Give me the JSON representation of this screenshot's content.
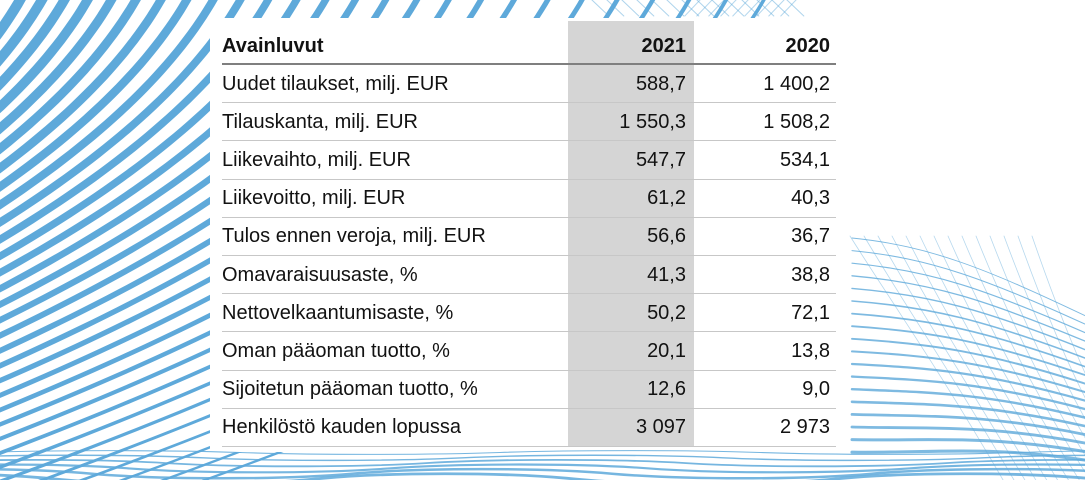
{
  "page": {
    "background": "#ffffff"
  },
  "colors": {
    "accent_blue": "#5ea9da",
    "highlight_column_bg": "#d5d5d5",
    "header_rule": "#7f7f7f",
    "row_rule": "#c7c7c7",
    "text": "#121212"
  },
  "table": {
    "header": {
      "label": "Avainluvut",
      "year_current": "2021",
      "year_prior": "2020"
    },
    "rows": [
      {
        "label": "Uudet tilaukset, milj. EUR",
        "v2021": "588,7",
        "v2020": "1 400,2"
      },
      {
        "label": "Tilauskanta, milj. EUR",
        "v2021": "1 550,3",
        "v2020": "1 508,2"
      },
      {
        "label": "Liikevaihto, milj. EUR",
        "v2021": "547,7",
        "v2020": "534,1"
      },
      {
        "label": "Liikevoitto, milj. EUR",
        "v2021": "61,2",
        "v2020": "40,3"
      },
      {
        "label": "Tulos ennen veroja, milj. EUR",
        "v2021": "56,6",
        "v2020": "36,7"
      },
      {
        "label": "Omavaraisuusaste, %",
        "v2021": "41,3",
        "v2020": "38,8"
      },
      {
        "label": "Nettovelkaantumisaste, %",
        "v2021": "50,2",
        "v2020": "72,1"
      },
      {
        "label": "Oman pääoman tuotto, %",
        "v2021": "20,1",
        "v2020": "13,8"
      },
      {
        "label": "Sijoitetun pääoman tuotto, %",
        "v2021": "12,6",
        "v2020": "9,0"
      },
      {
        "label": "Henkilöstö kauden lopussa",
        "v2021": "3 097",
        "v2020": "2 973"
      }
    ]
  }
}
